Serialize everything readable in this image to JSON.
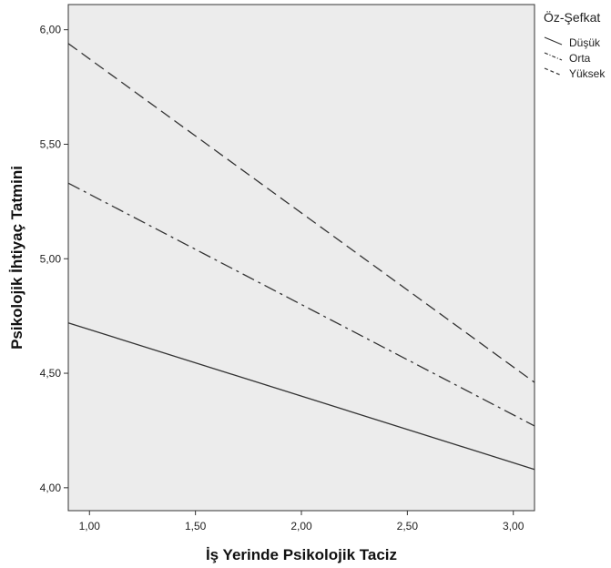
{
  "chart_data": {
    "type": "line",
    "xlabel": "İş Yerinde Psikolojik Taciz",
    "ylabel": "Psikolojik İhtiyaç Tatmini",
    "xlim": [
      0.9,
      3.1
    ],
    "ylim": [
      3.9,
      6.11
    ],
    "xticks": [
      1.0,
      1.5,
      2.0,
      2.5,
      3.0
    ],
    "xtick_labels": [
      "1,00",
      "1,50",
      "2,00",
      "2,50",
      "3,00"
    ],
    "yticks": [
      4.0,
      4.5,
      5.0,
      5.5,
      6.0
    ],
    "ytick_labels": [
      "4,00",
      "4,50",
      "5,00",
      "5,50",
      "6,00"
    ],
    "grid": false,
    "legend": {
      "title": "Öz-Şefkat",
      "placement": "right"
    },
    "plot_background": "#ececec",
    "series": [
      {
        "name": "Düşük",
        "x": [
          0.9,
          3.1
        ],
        "y": [
          4.72,
          4.08
        ],
        "style": "solid"
      },
      {
        "name": "Orta",
        "x": [
          0.9,
          3.1
        ],
        "y": [
          5.33,
          4.27
        ],
        "style": "dashdot"
      },
      {
        "name": "Yüksek",
        "x": [
          0.9,
          3.1
        ],
        "y": [
          5.94,
          4.46
        ],
        "style": "dashed"
      }
    ]
  }
}
